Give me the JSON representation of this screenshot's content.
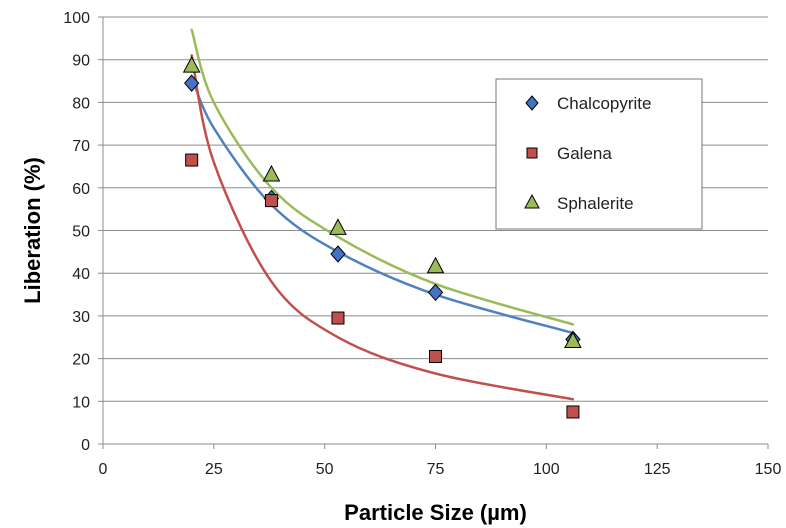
{
  "chart_data": {
    "type": "scatter",
    "title": "",
    "xlabel": "Particle Size (µm)",
    "ylabel": "Liberation (%)",
    "xlim": [
      0,
      150
    ],
    "ylim": [
      0,
      100
    ],
    "xticks": [
      0,
      25,
      50,
      75,
      100,
      125,
      150
    ],
    "yticks": [
      0,
      10,
      20,
      30,
      40,
      50,
      60,
      70,
      80,
      90,
      100
    ],
    "grid": "horizontal",
    "legend_position": "right",
    "series": [
      {
        "name": "Chalcopyrite",
        "marker": "diamond",
        "color": "#4472c4",
        "trend_color": "#4f81bd",
        "x": [
          20,
          38,
          53,
          75,
          106
        ],
        "values": [
          84.5,
          57.5,
          44.5,
          35.5,
          24.5
        ],
        "trendline": {
          "x": [
            20,
            25,
            38,
            53,
            75,
            106
          ],
          "y": [
            86,
            74,
            56,
            45,
            35,
            26
          ]
        }
      },
      {
        "name": "Galena",
        "marker": "square",
        "color": "#c0504d",
        "trend_color": "#c0504d",
        "x": [
          20,
          38,
          53,
          75,
          106
        ],
        "values": [
          66.5,
          57,
          29.5,
          20.5,
          7.5
        ],
        "trendline": {
          "x": [
            20,
            25,
            38,
            53,
            75,
            106
          ],
          "y": [
            91,
            66,
            38,
            25,
            16.5,
            10.5
          ]
        }
      },
      {
        "name": "Sphalerite",
        "marker": "triangle",
        "color": "#9bbb59",
        "trend_color": "#9bbb59",
        "x": [
          20,
          38,
          53,
          75,
          106
        ],
        "values": [
          88.5,
          63,
          50.5,
          41.5,
          24
        ],
        "trendline": {
          "x": [
            20,
            25,
            38,
            53,
            75,
            106
          ],
          "y": [
            97,
            80,
            60,
            48.5,
            37.5,
            28
          ]
        }
      }
    ]
  }
}
